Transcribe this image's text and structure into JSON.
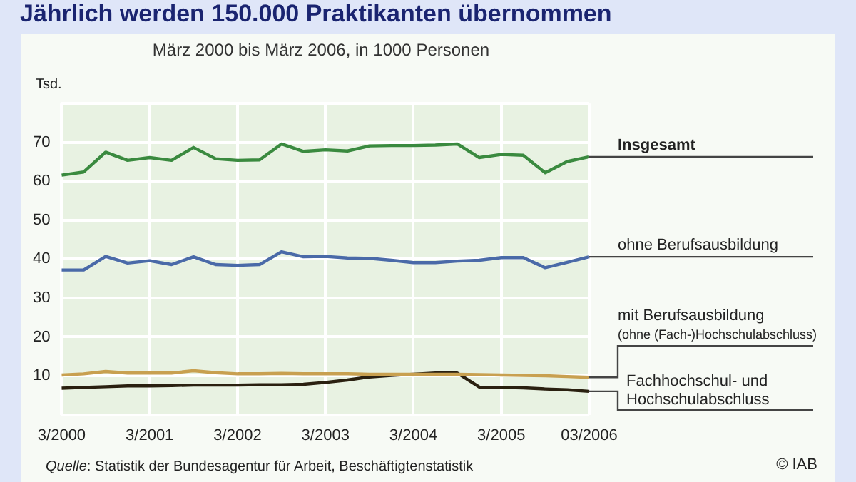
{
  "chart_data": {
    "type": "line",
    "title": "Jährlich werden 150.000 Praktikanten übernommen",
    "subtitle": "März 2000 bis März 2006, in 1000 Personen",
    "ylabel": "Tsd.",
    "annotations": [
      "Quelle: Statistik der Bundesagentur für Arbeit, Beschäftigtenstatistik",
      "© IAB"
    ],
    "categories": [
      "3/2000",
      null,
      null,
      null,
      "3/2001",
      null,
      null,
      null,
      "3/2002",
      null,
      null,
      null,
      "3/2003",
      null,
      null,
      null,
      "3/2004",
      null,
      null,
      null,
      "3/2005",
      null,
      null,
      null,
      "03/2006"
    ],
    "series": [
      {
        "name": "Insgesamt",
        "color": "#3a8a3f",
        "values": [
          61.6,
          62.4,
          67.5,
          65.4,
          66.1,
          65.4,
          68.7,
          65.8,
          65.4,
          65.5,
          69.6,
          67.7,
          68.1,
          67.8,
          69.1,
          69.2,
          69.2,
          69.3,
          69.6,
          66.1,
          66.9,
          66.7,
          62.2,
          65.1,
          66.3
        ]
      },
      {
        "name": "ohne Berufsausbildung",
        "color": "#4a6aa8",
        "values": [
          37.2,
          37.2,
          40.7,
          39.0,
          39.6,
          38.6,
          40.6,
          38.6,
          38.4,
          38.6,
          41.9,
          40.6,
          40.7,
          40.3,
          40.2,
          39.7,
          39.1,
          39.1,
          39.5,
          39.7,
          40.4,
          40.4,
          37.8,
          39.2,
          40.6
        ]
      },
      {
        "name": "mit Berufsausbildung\n(ohne (Fach-)Hochschulabschluss)",
        "color": "#c8a050",
        "values": [
          10.2,
          10.5,
          11.1,
          10.7,
          10.7,
          10.7,
          11.3,
          10.8,
          10.5,
          10.5,
          10.6,
          10.5,
          10.5,
          10.5,
          10.4,
          10.4,
          10.4,
          10.4,
          10.4,
          10.3,
          10.2,
          10.1,
          10.0,
          9.8,
          9.6
        ]
      },
      {
        "name": "Fachhochschul- und\nHochschulabschluss",
        "color": "#2a2010",
        "values": [
          6.8,
          7.0,
          7.2,
          7.4,
          7.4,
          7.5,
          7.6,
          7.6,
          7.6,
          7.7,
          7.7,
          7.8,
          8.3,
          8.9,
          9.7,
          10.1,
          10.4,
          10.7,
          10.7,
          7.1,
          7.0,
          6.9,
          6.6,
          6.4,
          6.0
        ]
      }
    ],
    "ylim": [
      0,
      80
    ],
    "yticks": [
      {
        "value": 0,
        "label": null
      },
      10,
      20,
      30,
      40,
      50,
      60,
      70,
      {
        "value": 80,
        "label": null
      }
    ],
    "grid": true,
    "legend": false,
    "marker": "none",
    "line_style": "solid"
  }
}
